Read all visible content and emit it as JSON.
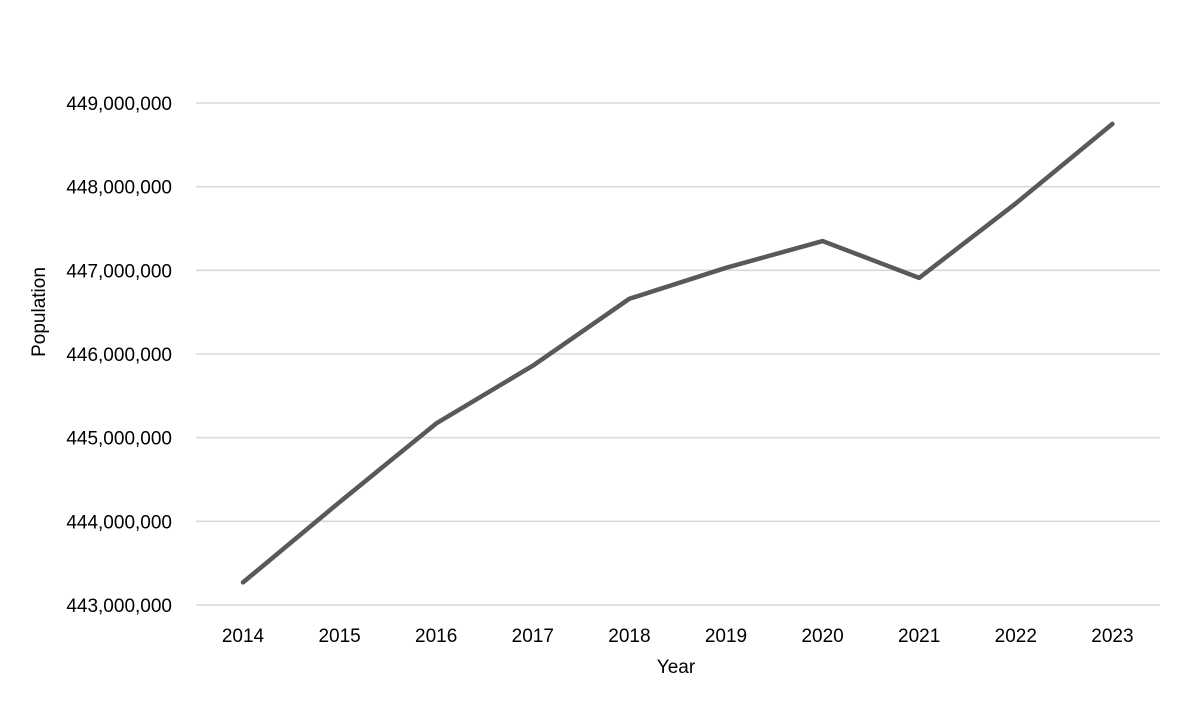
{
  "chart_data": {
    "type": "line",
    "title": "",
    "xlabel": "Year",
    "ylabel": "Population",
    "x": [
      "2014",
      "2015",
      "2016",
      "2017",
      "2018",
      "2019",
      "2020",
      "2021",
      "2022",
      "2023"
    ],
    "series": [
      {
        "values": [
          443270000,
          444230000,
          445170000,
          445860000,
          446660000,
          447030000,
          447350000,
          446910000,
          447800000,
          448750000
        ]
      }
    ],
    "y_tick_labels": [
      "443,000,000",
      "444,000,000",
      "445,000,000",
      "446,000,000",
      "447,000,000",
      "448,000,000",
      "449,000,000"
    ],
    "ylim": [
      443000000,
      449000000
    ],
    "grid": "horizontal",
    "legend": "none",
    "colors": {
      "line": "#595959",
      "grid": "#d9d9d9"
    }
  }
}
